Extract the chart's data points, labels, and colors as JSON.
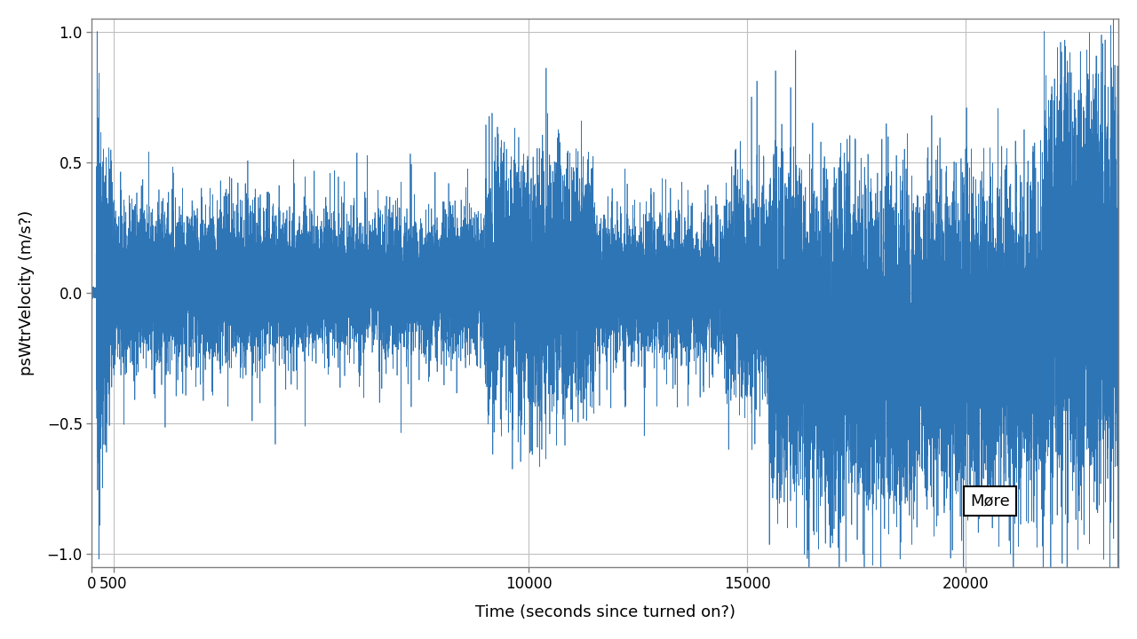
{
  "title": "",
  "xlabel": "Time (seconds since turned on?)",
  "ylabel": "psWtrVelocity (m/s?)",
  "line_color": "#2e75b6",
  "background_color": "#ffffff",
  "grid_color": "#c0c0c0",
  "xlim": [
    0,
    23500
  ],
  "ylim": [
    -1.05,
    1.05
  ],
  "xticks": [
    0,
    500,
    10000,
    15000,
    20000
  ],
  "yticks": [
    -1.0,
    -0.5,
    0.0,
    0.5,
    1.0
  ],
  "legend_label": "Møre",
  "line_width": 0.5,
  "seed": 7
}
